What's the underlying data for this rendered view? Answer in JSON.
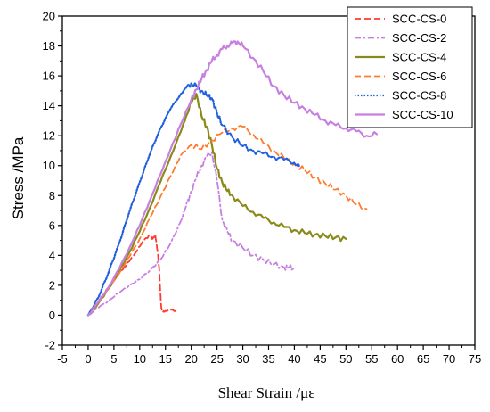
{
  "chart_data": {
    "type": "line",
    "title": "",
    "xlabel": "Shear Strain /με",
    "ylabel": "Stress /MPa",
    "xlim": [
      -5,
      75
    ],
    "ylim": [
      -2,
      20
    ],
    "xticks": [
      -5,
      0,
      5,
      10,
      15,
      20,
      25,
      30,
      35,
      40,
      45,
      50,
      55,
      60,
      65,
      70,
      75
    ],
    "yticks": [
      -2,
      0,
      2,
      4,
      6,
      8,
      10,
      12,
      14,
      16,
      18,
      20
    ],
    "grid": false,
    "legend_position": "top-right",
    "series": [
      {
        "name": "SCC-CS-0",
        "color": "#ff3b30",
        "dash": "dashed",
        "x": [
          0,
          1,
          2,
          3,
          4,
          5,
          6,
          7,
          8,
          9,
          10,
          11,
          12,
          12.5,
          13,
          13.5,
          13.8,
          14,
          14.2,
          14.5,
          15,
          16,
          17
        ],
        "y": [
          0,
          0.4,
          0.9,
          1.4,
          1.9,
          2.3,
          2.8,
          3.2,
          3.6,
          4.1,
          4.6,
          5.1,
          5.3,
          5.1,
          5.4,
          4.2,
          3.0,
          1.5,
          0.5,
          0.2,
          0.3,
          0.35,
          0.3
        ]
      },
      {
        "name": "SCC-CS-2",
        "color": "#c77fe0",
        "dash": "dashdot",
        "x": [
          0,
          2,
          4,
          6,
          8,
          10,
          12,
          14,
          16,
          18,
          19,
          20,
          21,
          22,
          23,
          24,
          25,
          26,
          27,
          28,
          30,
          32,
          34,
          36,
          38,
          39,
          40
        ],
        "y": [
          0,
          0.5,
          1.0,
          1.5,
          2.0,
          2.4,
          3.0,
          3.7,
          4.8,
          6.3,
          7.3,
          8.3,
          9.2,
          10.0,
          10.6,
          10.9,
          9.0,
          6.4,
          5.6,
          5.0,
          4.5,
          4.0,
          3.7,
          3.4,
          3.2,
          3.2,
          3.1
        ]
      },
      {
        "name": "SCC-CS-4",
        "color": "#8a8a1a",
        "dash": "solid",
        "x": [
          0,
          2,
          4,
          6,
          8,
          10,
          12,
          14,
          16,
          18,
          19,
          20,
          21,
          22,
          23,
          24,
          25,
          26,
          27,
          28,
          30,
          32,
          34,
          36,
          38,
          40,
          42,
          44,
          46,
          48,
          50
        ],
        "y": [
          0,
          0.8,
          1.8,
          2.9,
          4.2,
          5.6,
          7.2,
          8.9,
          10.6,
          12.3,
          13.3,
          14.2,
          14.8,
          13.3,
          12.6,
          11.4,
          9.8,
          8.9,
          8.3,
          8.0,
          7.3,
          6.9,
          6.5,
          6.2,
          5.9,
          5.7,
          5.5,
          5.4,
          5.3,
          5.2,
          5.1
        ]
      },
      {
        "name": "SCC-CS-6",
        "color": "#ff7b2e",
        "dash": "dashed",
        "x": [
          0,
          2,
          4,
          6,
          8,
          10,
          12,
          14,
          16,
          18,
          20,
          22,
          24,
          26,
          28,
          30,
          32,
          34,
          36,
          38,
          40,
          42,
          44,
          46,
          48,
          50,
          52,
          54
        ],
        "y": [
          0,
          0.9,
          1.8,
          2.8,
          3.9,
          5.1,
          6.5,
          7.9,
          9.3,
          10.7,
          11.4,
          11.1,
          11.7,
          12.2,
          12.5,
          12.6,
          12.1,
          11.5,
          11.0,
          10.5,
          10.1,
          9.7,
          9.2,
          8.8,
          8.4,
          8.0,
          7.4,
          7.1
        ]
      },
      {
        "name": "SCC-CS-8",
        "color": "#1f5fe0",
        "dash": "dotted",
        "x": [
          0,
          2,
          4,
          6,
          8,
          10,
          12,
          14,
          16,
          18,
          19,
          20,
          21,
          22,
          23,
          24,
          25,
          26,
          28,
          30,
          32,
          34,
          36,
          38,
          40,
          41
        ],
        "y": [
          0,
          1.2,
          2.9,
          4.8,
          6.9,
          8.9,
          10.8,
          12.5,
          13.8,
          14.8,
          15.2,
          15.5,
          15.3,
          15.0,
          14.7,
          14.5,
          13.5,
          12.7,
          11.9,
          11.3,
          11.0,
          10.8,
          10.6,
          10.4,
          10.2,
          9.9
        ]
      },
      {
        "name": "SCC-CS-10",
        "color": "#c77fe0",
        "dash": "solid",
        "x": [
          0,
          2,
          4,
          6,
          8,
          10,
          12,
          14,
          16,
          18,
          20,
          21,
          22,
          23,
          24,
          25,
          26,
          27,
          28,
          29,
          30,
          32,
          34,
          36,
          38,
          40,
          42,
          44,
          46,
          48,
          50,
          52,
          54,
          56
        ],
        "y": [
          0,
          0.9,
          1.9,
          3.1,
          4.5,
          6.0,
          7.7,
          9.4,
          11.1,
          12.8,
          14.4,
          15.1,
          15.8,
          16.4,
          17.0,
          17.4,
          17.8,
          18.0,
          18.2,
          18.3,
          18.0,
          17.2,
          16.3,
          15.3,
          14.7,
          14.2,
          13.8,
          13.4,
          13.0,
          12.7,
          12.5,
          12.3,
          12.0,
          12.1
        ]
      }
    ]
  }
}
